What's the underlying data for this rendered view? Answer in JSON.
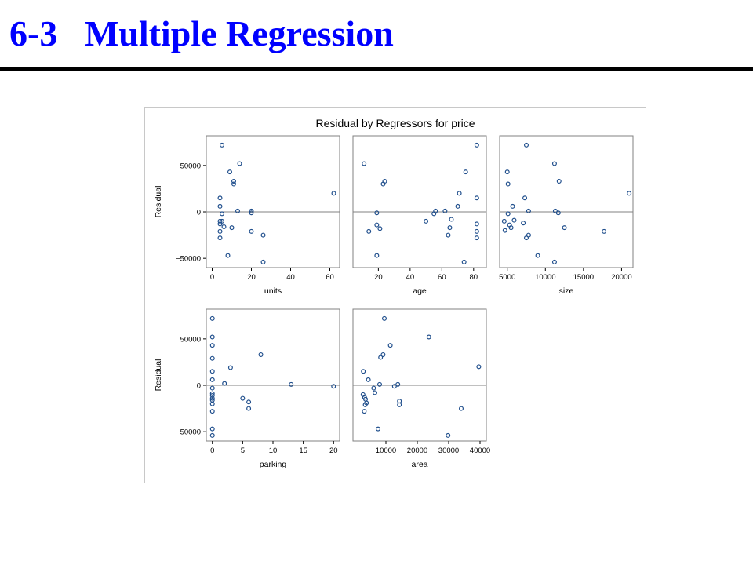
{
  "slide": {
    "number": "6-3",
    "heading": "Multiple Regression"
  },
  "colors": {
    "title": "#0000ff",
    "marker": "#1f4e8c",
    "frame": "#808080",
    "refline": "#808080"
  },
  "chart_data": {
    "type": "scatter",
    "title": "Residual by Regressors for price",
    "ylabel": "Residual",
    "y_ticks": [
      -50000,
      0,
      50000
    ],
    "y_tick_labels": [
      "−50000",
      "0",
      "50000"
    ],
    "ylim": [
      -60000,
      82000
    ],
    "grid": false,
    "reference_line_y": 0,
    "panels": [
      {
        "xlabel": "units",
        "xlim": [
          -3,
          65
        ],
        "x_ticks": [
          0,
          20,
          40,
          60
        ],
        "x_tick_labels": [
          "0",
          "20",
          "40",
          "60"
        ],
        "points": [
          [
            5,
            72000
          ],
          [
            14,
            52000
          ],
          [
            9,
            43000
          ],
          [
            11,
            33000
          ],
          [
            11,
            30000
          ],
          [
            62,
            20000
          ],
          [
            4,
            15000
          ],
          [
            4,
            6000
          ],
          [
            5,
            -2000
          ],
          [
            4,
            -10000
          ],
          [
            5,
            -10000
          ],
          [
            4,
            -13000
          ],
          [
            6,
            -16000
          ],
          [
            20,
            1000
          ],
          [
            20,
            -1000
          ],
          [
            13,
            1000
          ],
          [
            10,
            -17000
          ],
          [
            4,
            -21000
          ],
          [
            20,
            -21000
          ],
          [
            26,
            -25000
          ],
          [
            4,
            -28000
          ],
          [
            8,
            -47000
          ],
          [
            26,
            -54000
          ]
        ]
      },
      {
        "xlabel": "age",
        "xlim": [
          4,
          88
        ],
        "x_ticks": [
          20,
          40,
          60,
          80
        ],
        "x_tick_labels": [
          "20",
          "40",
          "60",
          "80"
        ],
        "points": [
          [
            82,
            72000
          ],
          [
            11,
            52000
          ],
          [
            75,
            43000
          ],
          [
            24,
            33000
          ],
          [
            23,
            30000
          ],
          [
            71,
            20000
          ],
          [
            82,
            15000
          ],
          [
            70,
            6000
          ],
          [
            62,
            1000
          ],
          [
            56,
            1000
          ],
          [
            55,
            -2000
          ],
          [
            19,
            -1000
          ],
          [
            66,
            -8000
          ],
          [
            50,
            -10000
          ],
          [
            82,
            -13000
          ],
          [
            19,
            -14000
          ],
          [
            65,
            -17000
          ],
          [
            21,
            -18000
          ],
          [
            14,
            -21000
          ],
          [
            82,
            -21000
          ],
          [
            64,
            -25000
          ],
          [
            82,
            -28000
          ],
          [
            19,
            -47000
          ],
          [
            74,
            -54000
          ]
        ]
      },
      {
        "xlabel": "size",
        "xlim": [
          4000,
          21500
        ],
        "x_ticks": [
          5000,
          10000,
          15000,
          20000
        ],
        "x_tick_labels": [
          "5000",
          "10000",
          "15000",
          "20000"
        ],
        "points": [
          [
            7500,
            72000
          ],
          [
            11200,
            52000
          ],
          [
            5000,
            43000
          ],
          [
            11800,
            33000
          ],
          [
            5100,
            30000
          ],
          [
            21000,
            20000
          ],
          [
            7300,
            15000
          ],
          [
            5700,
            6000
          ],
          [
            7800,
            1000
          ],
          [
            11300,
            1000
          ],
          [
            11700,
            -1000
          ],
          [
            5100,
            -2000
          ],
          [
            5900,
            -9000
          ],
          [
            4600,
            -10000
          ],
          [
            7100,
            -12000
          ],
          [
            5300,
            -14000
          ],
          [
            5500,
            -17000
          ],
          [
            12500,
            -17000
          ],
          [
            4700,
            -20000
          ],
          [
            17700,
            -21000
          ],
          [
            7800,
            -25000
          ],
          [
            7500,
            -28000
          ],
          [
            9000,
            -47000
          ],
          [
            11200,
            -54000
          ]
        ]
      },
      {
        "xlabel": "parking",
        "xlim": [
          -1,
          21
        ],
        "x_ticks": [
          0,
          5,
          10,
          15,
          20
        ],
        "x_tick_labels": [
          "0",
          "5",
          "10",
          "15",
          "20"
        ],
        "points": [
          [
            0,
            72000
          ],
          [
            0,
            52000
          ],
          [
            0,
            43000
          ],
          [
            0,
            29000
          ],
          [
            3,
            19000
          ],
          [
            8,
            33000
          ],
          [
            0,
            15000
          ],
          [
            0,
            6000
          ],
          [
            2,
            2000
          ],
          [
            13,
            1000
          ],
          [
            20,
            -1000
          ],
          [
            0,
            -3000
          ],
          [
            0,
            -9000
          ],
          [
            0,
            -11000
          ],
          [
            0,
            -14000
          ],
          [
            5,
            -14000
          ],
          [
            0,
            -16000
          ],
          [
            6,
            -18000
          ],
          [
            0,
            -20000
          ],
          [
            6,
            -25000
          ],
          [
            0,
            -28000
          ],
          [
            0,
            -47000
          ],
          [
            0,
            -54000
          ]
        ]
      },
      {
        "xlabel": "area",
        "xlim": [
          -500,
          42000
        ],
        "x_ticks": [
          10000,
          20000,
          30000,
          40000
        ],
        "x_tick_labels": [
          "10000",
          "20000",
          "30000",
          "40000"
        ],
        "points": [
          [
            9500,
            72000
          ],
          [
            23700,
            52000
          ],
          [
            11400,
            43000
          ],
          [
            9100,
            33000
          ],
          [
            8300,
            30000
          ],
          [
            39600,
            20000
          ],
          [
            2800,
            15000
          ],
          [
            4400,
            6000
          ],
          [
            8000,
            1000
          ],
          [
            13800,
            1000
          ],
          [
            12700,
            -1000
          ],
          [
            6100,
            -3000
          ],
          [
            6500,
            -8000
          ],
          [
            2700,
            -10000
          ],
          [
            3200,
            -13000
          ],
          [
            3500,
            -15000
          ],
          [
            14300,
            -17000
          ],
          [
            3800,
            -19000
          ],
          [
            14300,
            -21000
          ],
          [
            3400,
            -21000
          ],
          [
            34000,
            -25000
          ],
          [
            3100,
            -28000
          ],
          [
            7500,
            -47000
          ],
          [
            29800,
            -54000
          ]
        ]
      }
    ]
  }
}
